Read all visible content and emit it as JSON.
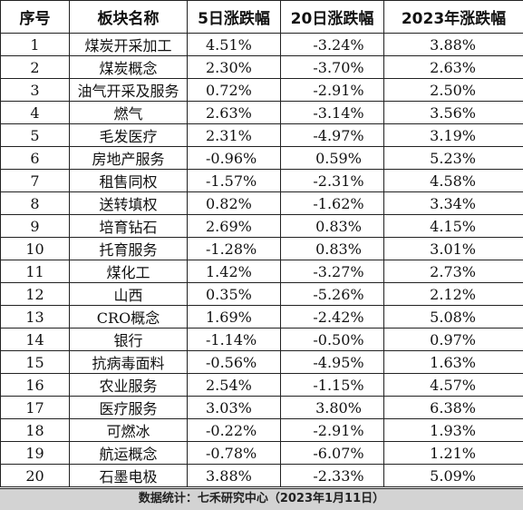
{
  "table": {
    "headers": [
      "序号",
      "板块名称",
      "5日涨跌幅",
      "20日涨跌幅",
      "2023年涨跌幅"
    ],
    "rows": [
      {
        "idx": "1",
        "name": "煤炭开采加工",
        "d5": "4.51%",
        "d20": "-3.24%",
        "y2023": "3.88%"
      },
      {
        "idx": "2",
        "name": "煤炭概念",
        "d5": "2.30%",
        "d20": "-3.70%",
        "y2023": "2.63%"
      },
      {
        "idx": "3",
        "name": "油气开采及服务",
        "d5": "0.72%",
        "d20": "-2.91%",
        "y2023": "2.50%"
      },
      {
        "idx": "4",
        "name": "燃气",
        "d5": "2.63%",
        "d20": "-3.14%",
        "y2023": "3.56%"
      },
      {
        "idx": "5",
        "name": "毛发医疗",
        "d5": "2.31%",
        "d20": "-4.97%",
        "y2023": "3.19%"
      },
      {
        "idx": "6",
        "name": "房地产服务",
        "d5": "-0.96%",
        "d20": "0.59%",
        "y2023": "5.23%"
      },
      {
        "idx": "7",
        "name": "租售同权",
        "d5": "-1.57%",
        "d20": "-2.31%",
        "y2023": "4.58%"
      },
      {
        "idx": "8",
        "name": "送转填权",
        "d5": "0.82%",
        "d20": "-1.62%",
        "y2023": "3.34%"
      },
      {
        "idx": "9",
        "name": "培育钻石",
        "d5": "2.69%",
        "d20": "0.83%",
        "y2023": "4.15%"
      },
      {
        "idx": "10",
        "name": "托育服务",
        "d5": "-1.28%",
        "d20": "0.83%",
        "y2023": "3.01%"
      },
      {
        "idx": "11",
        "name": "煤化工",
        "d5": "1.42%",
        "d20": "-3.27%",
        "y2023": "2.73%"
      },
      {
        "idx": "12",
        "name": "山西",
        "d5": "0.35%",
        "d20": "-5.26%",
        "y2023": "2.12%"
      },
      {
        "idx": "13",
        "name": "CRO概念",
        "d5": "1.69%",
        "d20": "-2.42%",
        "y2023": "5.08%"
      },
      {
        "idx": "14",
        "name": "银行",
        "d5": "-1.14%",
        "d20": "-0.50%",
        "y2023": "0.97%"
      },
      {
        "idx": "15",
        "name": "抗病毒面料",
        "d5": "-0.56%",
        "d20": "-4.95%",
        "y2023": "1.63%"
      },
      {
        "idx": "16",
        "name": "农业服务",
        "d5": "2.54%",
        "d20": "-1.15%",
        "y2023": "4.57%"
      },
      {
        "idx": "17",
        "name": "医疗服务",
        "d5": "3.03%",
        "d20": "3.80%",
        "y2023": "6.38%"
      },
      {
        "idx": "18",
        "name": "可燃冰",
        "d5": "-0.22%",
        "d20": "-2.91%",
        "y2023": "1.93%"
      },
      {
        "idx": "19",
        "name": "航运概念",
        "d5": "-0.78%",
        "d20": "-6.07%",
        "y2023": "1.21%"
      },
      {
        "idx": "20",
        "name": "石墨电极",
        "d5": "3.88%",
        "d20": "-2.33%",
        "y2023": "5.09%"
      }
    ]
  },
  "footer": {
    "source": "数据统计：七禾研究中心（2023年1月11日）"
  }
}
